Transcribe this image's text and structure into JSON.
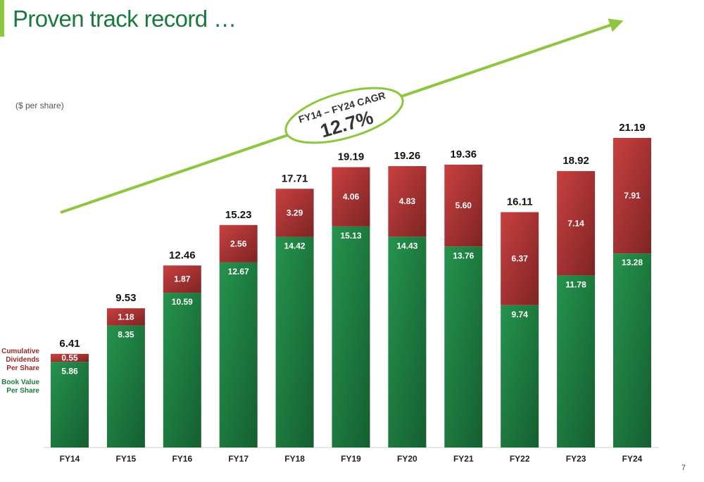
{
  "slide": {
    "title": "Proven track record …",
    "unit_label": "($ per share)",
    "page_number": "7",
    "legend": {
      "dividends": "Cumulative Dividends Per Share",
      "book_value": "Book Value Per Share"
    },
    "cagr": {
      "label": "FY14 – FY24 CAGR",
      "value": "12.7%"
    }
  },
  "colors": {
    "accent": "#8dc63f",
    "title": "#1a7a3e",
    "book_value": "#1f7a3e",
    "dividends": "#b83232"
  },
  "chart_data": {
    "type": "bar",
    "stacked": true,
    "categories": [
      "FY14",
      "FY15",
      "FY16",
      "FY17",
      "FY18",
      "FY19",
      "FY20",
      "FY21",
      "FY22",
      "FY23",
      "FY24"
    ],
    "series": [
      {
        "name": "Book Value Per Share",
        "values": [
          5.86,
          8.35,
          10.59,
          12.67,
          14.42,
          15.13,
          14.43,
          13.76,
          9.74,
          11.78,
          13.28
        ]
      },
      {
        "name": "Cumulative Dividends Per Share",
        "values": [
          0.55,
          1.18,
          1.87,
          2.56,
          3.29,
          4.06,
          4.83,
          5.6,
          6.37,
          7.14,
          7.91
        ]
      }
    ],
    "totals": [
      6.41,
      9.53,
      12.46,
      15.23,
      17.71,
      19.19,
      19.26,
      19.36,
      16.11,
      18.92,
      21.19
    ],
    "ylim": [
      0,
      21.19
    ],
    "grid": false,
    "legend": "left"
  }
}
